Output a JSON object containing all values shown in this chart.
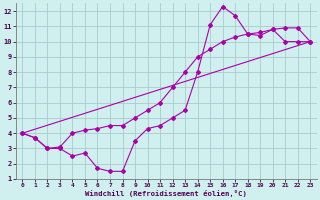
{
  "xlabel": "Windchill (Refroidissement éolien,°C)",
  "bg_color": "#cff0ee",
  "grid_color": "#aacccc",
  "line_color": "#aa00aa",
  "xlim": [
    -0.5,
    23.5
  ],
  "ylim": [
    1,
    12.5
  ],
  "xtick_labels": [
    "0",
    "1",
    "2",
    "3",
    "4",
    "5",
    "6",
    "7",
    "8",
    "9",
    "10",
    "11",
    "12",
    "13",
    "14",
    "15",
    "16",
    "17",
    "18",
    "19",
    "20",
    "21",
    "22",
    "23"
  ],
  "xtick_pos": [
    0,
    1,
    2,
    3,
    4,
    5,
    6,
    7,
    8,
    9,
    10,
    11,
    12,
    13,
    14,
    15,
    16,
    17,
    18,
    19,
    20,
    21,
    22,
    23
  ],
  "ytick_labels": [
    "1",
    "2",
    "3",
    "4",
    "5",
    "6",
    "7",
    "8",
    "9",
    "10",
    "11",
    "12"
  ],
  "ytick_pos": [
    1,
    2,
    3,
    4,
    5,
    6,
    7,
    8,
    9,
    10,
    11,
    12
  ],
  "line1_x": [
    0,
    1,
    2,
    3,
    4,
    5,
    6,
    7,
    8,
    9,
    10,
    11,
    12,
    13,
    14,
    15,
    16,
    17,
    18,
    19,
    20,
    21,
    22,
    23
  ],
  "line1_y": [
    4.0,
    3.7,
    3.0,
    3.0,
    2.5,
    2.7,
    1.7,
    1.5,
    1.5,
    3.5,
    4.3,
    4.5,
    5.0,
    5.5,
    8.0,
    11.1,
    12.3,
    11.7,
    10.5,
    10.4,
    10.8,
    10.0,
    10.0,
    10.0
  ],
  "line2_x": [
    0,
    1,
    2,
    3,
    4,
    5,
    6,
    7,
    8,
    9,
    10,
    11,
    12,
    13,
    14,
    15,
    16,
    17,
    18,
    19,
    20,
    21,
    22,
    23
  ],
  "line2_y": [
    4.0,
    3.7,
    3.0,
    3.1,
    4.0,
    4.2,
    4.3,
    4.5,
    4.5,
    5.0,
    5.5,
    6.0,
    7.0,
    8.0,
    9.0,
    9.5,
    10.0,
    10.3,
    10.5,
    10.6,
    10.8,
    10.9,
    10.9,
    10.0
  ],
  "line3_x": [
    0,
    23
  ],
  "line3_y": [
    4.0,
    10.0
  ]
}
